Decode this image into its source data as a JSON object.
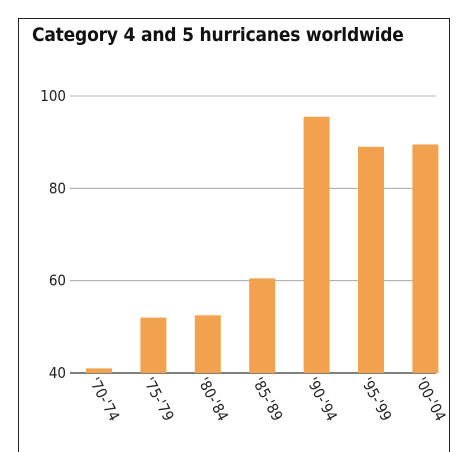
{
  "chart_data": {
    "type": "bar",
    "title": "Category 4 and 5 hurricanes worldwide",
    "xlabel": "",
    "ylabel": "",
    "categories": [
      "'70-'74",
      "'75-'79",
      "'80-'84",
      "'85-'89",
      "'90-'94",
      "'95-'99",
      "'00-'04"
    ],
    "values": [
      41,
      52,
      52.5,
      60.5,
      95.5,
      89,
      89.5
    ],
    "ylim": [
      40,
      100
    ],
    "yticks": [
      40,
      60,
      80,
      100
    ],
    "grid": true,
    "bar_color": "#F2A24E",
    "grid_color": "#999999"
  }
}
